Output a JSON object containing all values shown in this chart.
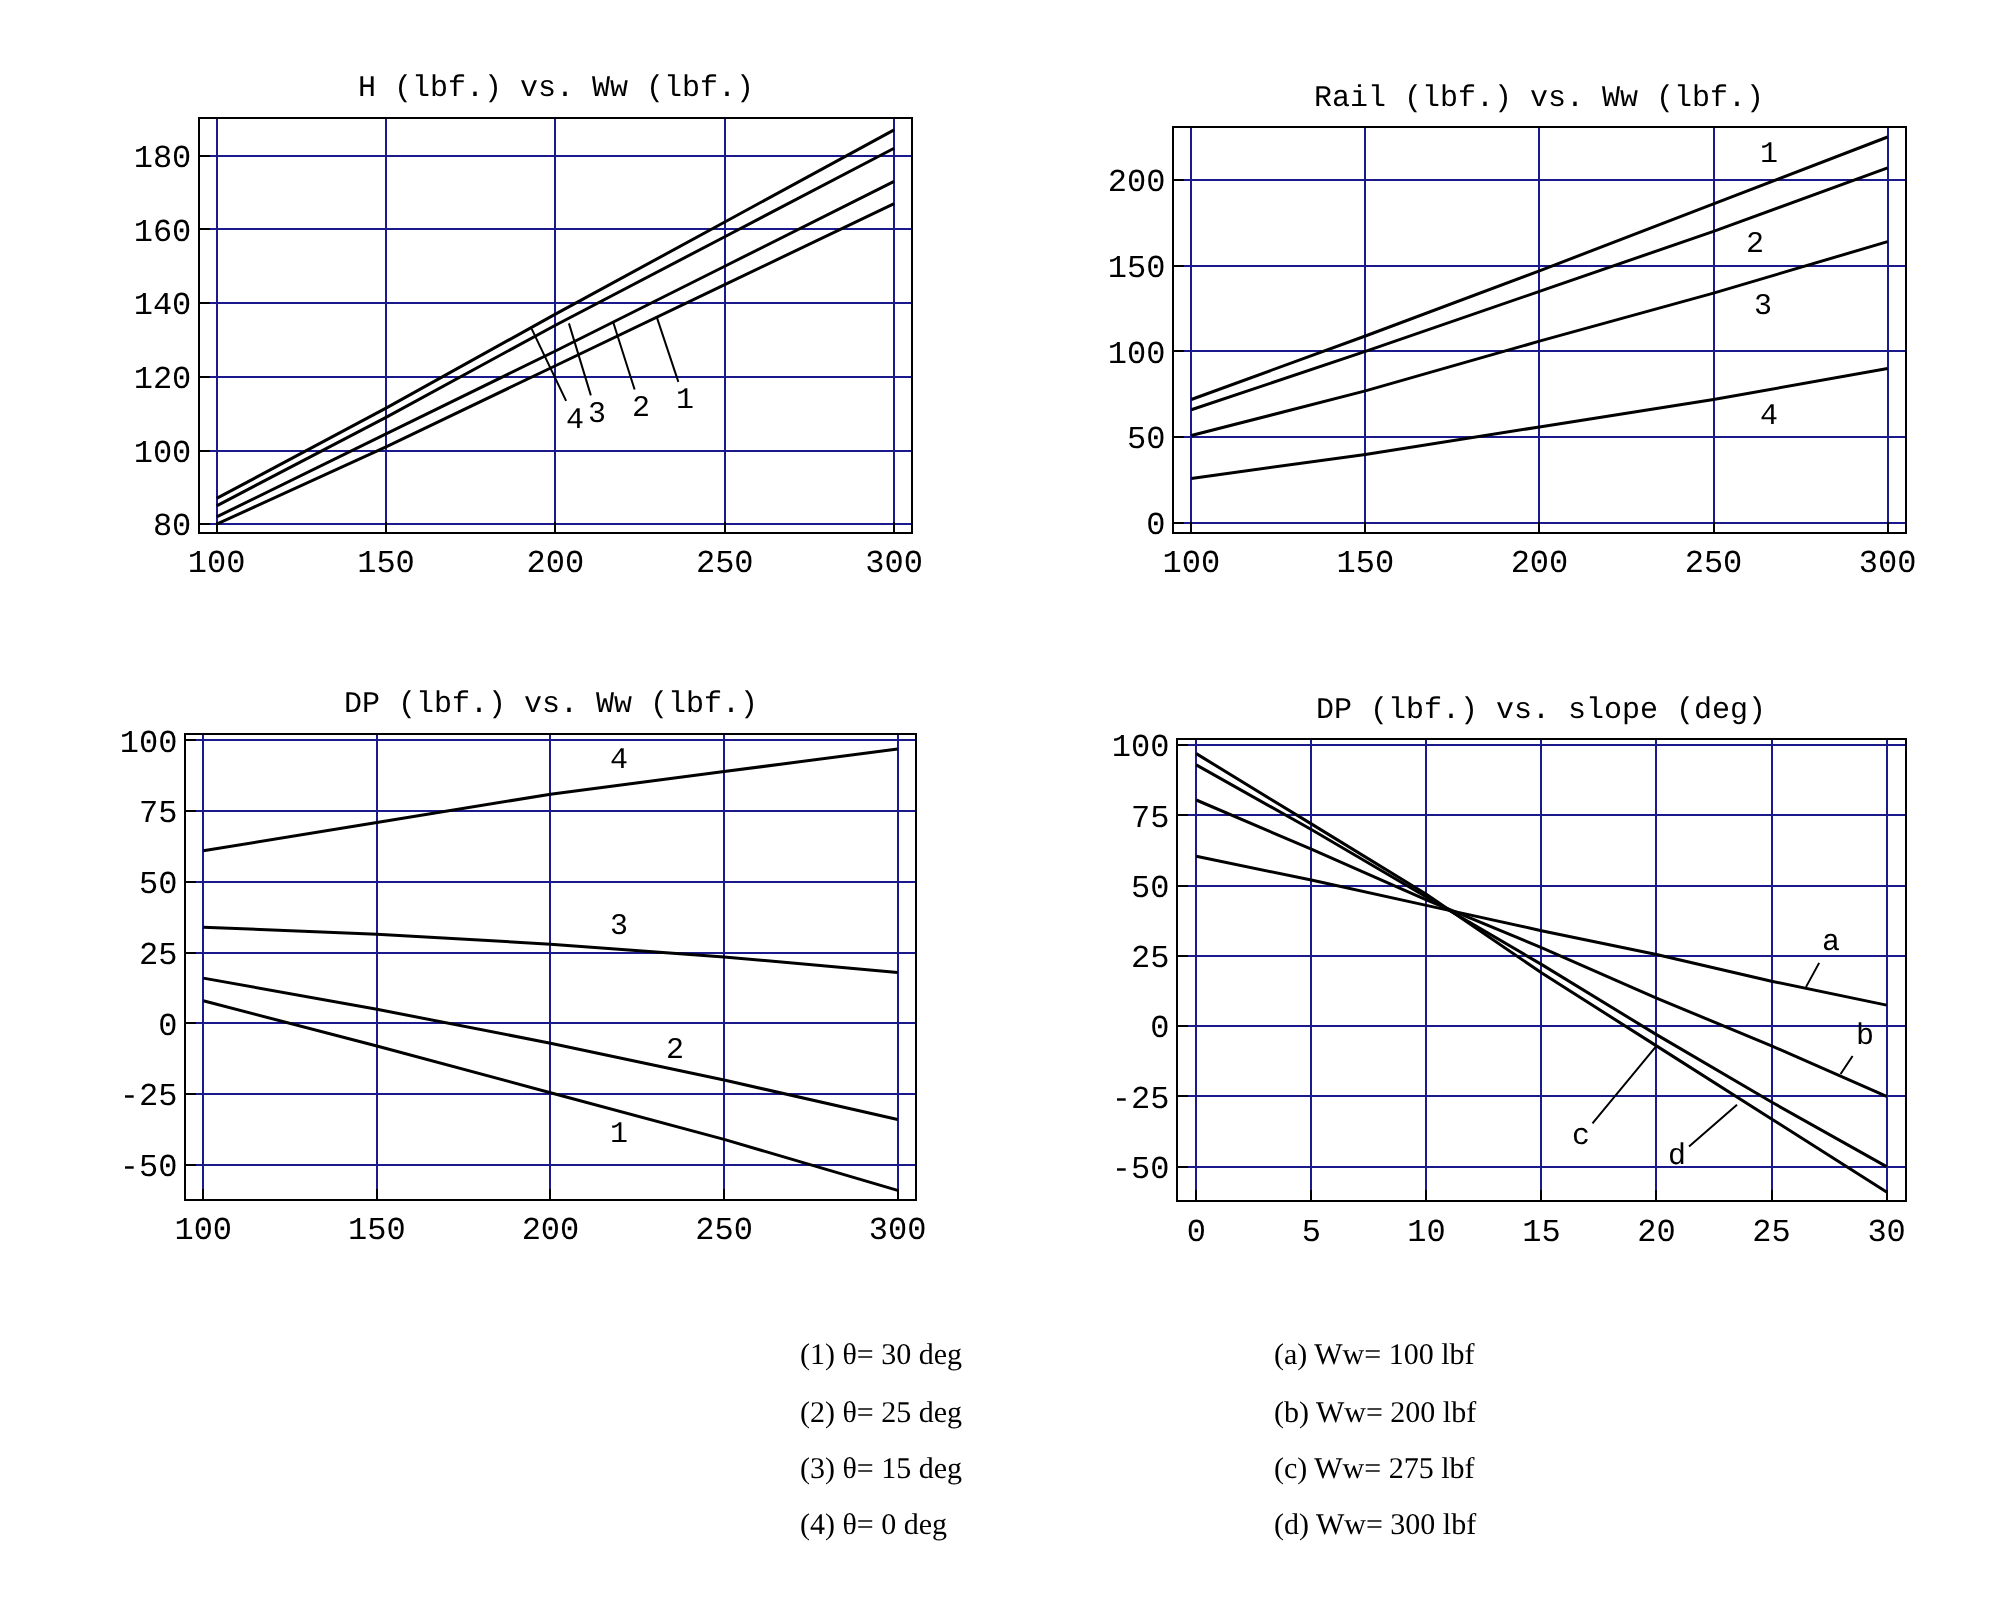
{
  "chart_data": [
    {
      "type": "line",
      "title": "H (lbf.) vs. Ww (lbf.)",
      "x": [
        100,
        150,
        200,
        250,
        300
      ],
      "xlim": [
        95,
        305
      ],
      "xticks": [
        100,
        150,
        200,
        250,
        300
      ],
      "ylim": [
        78,
        190
      ],
      "yticks": [
        80,
        100,
        120,
        140,
        160,
        180
      ],
      "grid": true,
      "series": [
        {
          "color": "#000000",
          "values": [
            80,
            101,
            123,
            145,
            167
          ]
        },
        {
          "color": "#000000",
          "values": [
            82,
            104.5,
            127,
            150,
            173
          ]
        },
        {
          "color": "#000000",
          "values": [
            85,
            109,
            134,
            158,
            182
          ]
        },
        {
          "color": "#000000",
          "values": [
            87,
            111.5,
            137,
            162,
            187
          ]
        }
      ],
      "annotations": [
        {
          "text": "4",
          "x": 193,
          "y": 133
        },
        {
          "text": "3",
          "x": 204,
          "y": 134.5
        },
        {
          "text": "2",
          "x": 217,
          "y": 135
        },
        {
          "text": "1",
          "x": 230,
          "y": 136
        }
      ]
    },
    {
      "type": "line",
      "title": "Rail (lbf.) vs. Ww (lbf.)",
      "x": [
        100,
        150,
        200,
        250,
        300
      ],
      "xlim": [
        95,
        305
      ],
      "xticks": [
        100,
        150,
        200,
        250,
        300
      ],
      "ylim": [
        -5,
        230
      ],
      "yticks": [
        0,
        50,
        100,
        150,
        200
      ],
      "grid": true,
      "series": [
        {
          "name": "1",
          "color": "#000000",
          "values": [
            72,
            109,
            147,
            186,
            225
          ]
        },
        {
          "name": "2",
          "color": "#000000",
          "values": [
            66,
            100,
            135,
            170,
            207
          ]
        },
        {
          "name": "3",
          "color": "#000000",
          "values": [
            51,
            77,
            106,
            134,
            164
          ]
        },
        {
          "name": "4",
          "color": "#000000",
          "values": [
            26,
            40,
            56,
            72,
            90
          ]
        }
      ]
    },
    {
      "type": "line",
      "title": "DP (lbf.) vs. Ww (lbf.)",
      "x": [
        100,
        150,
        200,
        250,
        300
      ],
      "xlim": [
        95,
        305
      ],
      "xticks": [
        100,
        150,
        200,
        250,
        300
      ],
      "ylim": [
        -62,
        102
      ],
      "yticks": [
        -50,
        -25,
        0,
        25,
        50,
        75,
        100
      ],
      "grid": true,
      "series": [
        {
          "name": "1",
          "color": "#000000",
          "values": [
            8,
            -8,
            -24.5,
            -41,
            -59
          ]
        },
        {
          "name": "2",
          "color": "#000000",
          "values": [
            16,
            5,
            -7,
            -20,
            -34
          ]
        },
        {
          "name": "3",
          "color": "#000000",
          "values": [
            34,
            31.5,
            28,
            23.5,
            18
          ]
        },
        {
          "name": "4",
          "color": "#000000",
          "values": [
            61,
            71,
            81,
            89,
            97
          ]
        }
      ],
      "annotations": [
        "(1) θ= 30 deg",
        "(2) θ= 25 deg",
        "(3) θ= 15 deg",
        "(4) θ= 0 deg"
      ]
    },
    {
      "type": "line",
      "title": "DP (lbf.) vs. slope (deg)",
      "x": [
        0,
        5,
        10,
        15,
        20,
        25,
        30
      ],
      "xlim": [
        -0.8,
        30.8
      ],
      "xticks": [
        0,
        5,
        10,
        15,
        20,
        25,
        30
      ],
      "ylim": [
        -62,
        102
      ],
      "yticks": [
        -50,
        -25,
        0,
        25,
        50,
        75,
        100
      ],
      "grid": true,
      "series": [
        {
          "color": "#000000",
          "values": [
            60.5,
            52,
            43,
            34,
            25.5,
            16,
            7.5
          ]
        },
        {
          "color": "#000000",
          "values": [
            80.5,
            63,
            45,
            28,
            10,
            -7,
            -25
          ]
        },
        {
          "color": "#000000",
          "values": [
            93,
            70,
            46,
            22,
            -3,
            -27,
            -50
          ]
        },
        {
          "color": "#000000",
          "values": [
            97,
            72,
            47,
            19,
            -7,
            -33,
            -59
          ]
        }
      ],
      "annotations": [
        {
          "text": "a",
          "x": 26.5,
          "y": 14
        },
        {
          "text": "b",
          "x": 28,
          "y": -17
        },
        {
          "text": "c",
          "x": 20,
          "y": -7
        },
        {
          "text": "d",
          "x": 23.5,
          "y": -28
        },
        "(a) Ww= 100 lbf",
        "(b) Ww= 200 lbf",
        "(c) Ww= 275 lbf",
        "(d) Ww= 300 lbf"
      ]
    }
  ]
}
